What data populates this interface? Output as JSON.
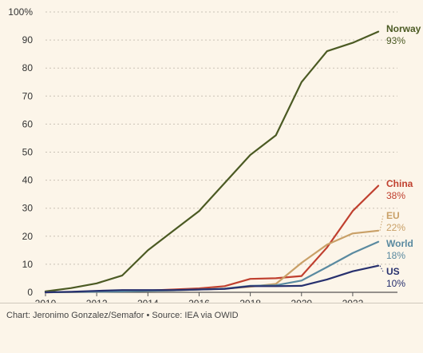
{
  "footer": {
    "credit": "Chart: Jeronimo Gonzalez/Semafor • Source: IEA via OWID"
  },
  "chart_data": {
    "type": "line",
    "title": "",
    "xlabel": "",
    "ylabel": "",
    "x": [
      2010,
      2011,
      2012,
      2013,
      2014,
      2015,
      2016,
      2017,
      2018,
      2019,
      2020,
      2021,
      2022,
      2023
    ],
    "xticks": [
      2010,
      2012,
      2014,
      2016,
      2018,
      2020,
      2022
    ],
    "yticks": [
      0,
      10,
      20,
      30,
      40,
      50,
      60,
      70,
      80,
      90,
      100
    ],
    "ytick_labels": [
      "0",
      "10",
      "20",
      "30",
      "40",
      "50",
      "60",
      "70",
      "80",
      "90",
      "100%"
    ],
    "xlim": [
      2010,
      2023
    ],
    "ylim": [
      0,
      100
    ],
    "grid": "horizontal dotted",
    "legend": "direct labels at line ends (right)",
    "series": [
      {
        "name": "Norway",
        "end_label": "93%",
        "color": "#4b5a23",
        "values": [
          0.3,
          1.5,
          3.2,
          6,
          15,
          22,
          29,
          39,
          49,
          56,
          75,
          86,
          89,
          93
        ]
      },
      {
        "name": "China",
        "end_label": "38%",
        "color": "#c0402f",
        "values": [
          0,
          0.1,
          0.2,
          0.4,
          0.6,
          1,
          1.4,
          2.2,
          4.8,
          5,
          5.8,
          16,
          29,
          38
        ]
      },
      {
        "name": "EU",
        "end_label": "22%",
        "color": "#c9a067",
        "values": [
          0,
          0.1,
          0.2,
          0.4,
          0.5,
          0.7,
          1,
          1.3,
          2,
          3,
          10.5,
          17,
          21,
          22
        ]
      },
      {
        "name": "World",
        "end_label": "18%",
        "color": "#5a8aa0",
        "values": [
          0,
          0.1,
          0.2,
          0.3,
          0.5,
          0.7,
          1,
          1.3,
          2.3,
          2.5,
          4.2,
          9,
          14,
          18
        ]
      },
      {
        "name": "US",
        "end_label": "10%",
        "color": "#27306e",
        "values": [
          0,
          0.2,
          0.5,
          0.8,
          0.8,
          0.8,
          1,
          1.2,
          2.2,
          2.2,
          2.3,
          4.6,
          7.5,
          9.5
        ]
      }
    ]
  }
}
